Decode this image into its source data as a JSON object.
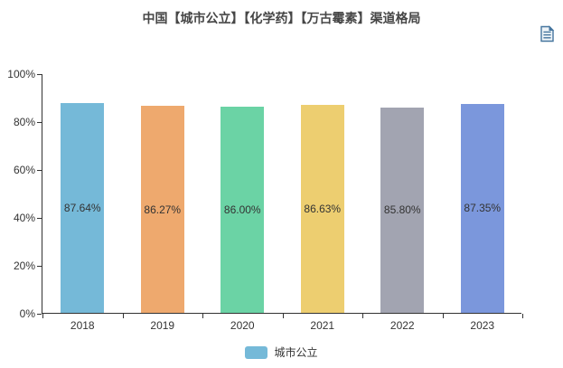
{
  "title": "中国【城市公立】【化学药】【万古霉素】渠道格局",
  "toolbox": {
    "data_view_icon": "data-view-icon",
    "icon_color": "#45759e"
  },
  "chart_data": {
    "type": "bar",
    "categories": [
      "2018",
      "2019",
      "2020",
      "2021",
      "2022",
      "2023"
    ],
    "series": [
      {
        "name": "城市公立",
        "values": [
          87.64,
          86.27,
          86.0,
          86.63,
          85.8,
          87.35
        ],
        "labels": [
          "87.64%",
          "86.27%",
          "86.00%",
          "86.63%",
          "85.80%",
          "87.35%"
        ]
      }
    ],
    "bar_colors": [
      "#75b9d8",
      "#eea96e",
      "#6bd3a5",
      "#edce70",
      "#a2a4b1",
      "#7b97dc"
    ],
    "title": "中国【城市公立】【化学药】【万古霉素】渠道格局",
    "xlabel": "",
    "ylabel": "",
    "ylim": [
      0,
      100
    ],
    "y_ticks": [
      "0%",
      "20%",
      "40%",
      "60%",
      "80%",
      "100%"
    ],
    "y_tick_values": [
      0,
      20,
      40,
      60,
      80,
      100
    ],
    "grid": false,
    "value_label_position": "inside-center",
    "legend": {
      "position": "bottom",
      "items": [
        {
          "label": "城市公立",
          "color": "#75b9d8"
        }
      ]
    }
  }
}
